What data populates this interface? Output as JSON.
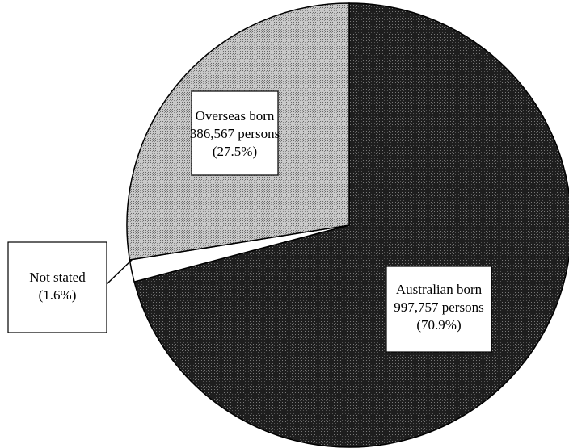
{
  "chart_data": {
    "type": "pie",
    "categories": [
      "Australian born",
      "Not stated",
      "Overseas born"
    ],
    "persons_labels": [
      "997,757 persons",
      null,
      "386,567 persons"
    ],
    "values": [
      70.9,
      1.6,
      27.5
    ],
    "value_labels": [
      "(70.9%)",
      "(1.6%)",
      "(27.5%)"
    ],
    "colors": [
      "#1e1e1e",
      "#ffffff",
      "#b8b8b8"
    ]
  }
}
